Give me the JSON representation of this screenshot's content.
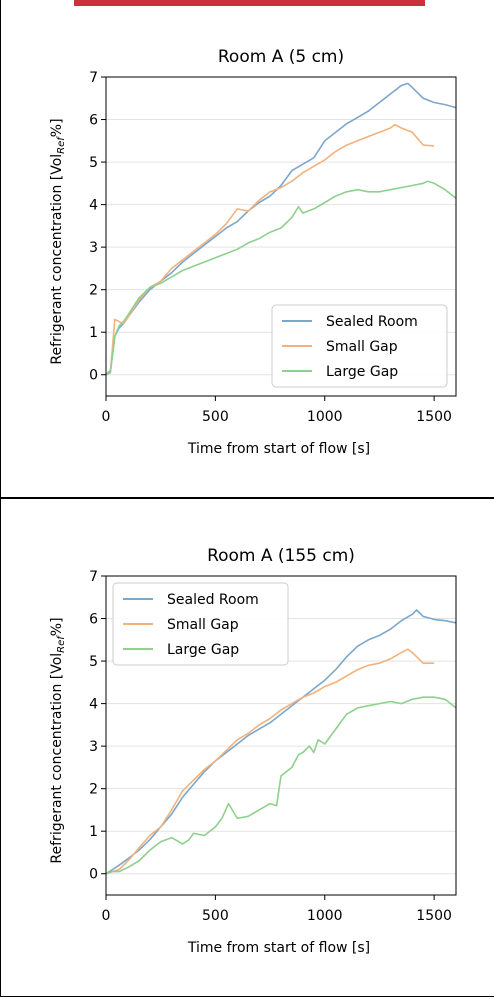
{
  "chart_data": [
    {
      "type": "line",
      "title": "Room A (5 cm)",
      "xlabel": "Time from start of flow [s]",
      "ylabel_main": "Refrigerant concentration [Vol",
      "ylabel_sub": "Ref",
      "ylabel_end": "%]",
      "xlim": [
        0,
        1600
      ],
      "ylim": [
        -0.5,
        7
      ],
      "xticks": [
        0,
        500,
        1000,
        1500
      ],
      "yticks": [
        0,
        1,
        2,
        3,
        4,
        5,
        6,
        7
      ],
      "grid": "horizontal",
      "legend_position": "lower-right",
      "series": [
        {
          "name": "Sealed Room",
          "color": "#7ba7cb",
          "x": [
            0,
            20,
            40,
            60,
            80,
            100,
            150,
            200,
            250,
            300,
            350,
            400,
            450,
            500,
            550,
            600,
            650,
            700,
            750,
            800,
            850,
            900,
            950,
            1000,
            1050,
            1100,
            1150,
            1200,
            1250,
            1300,
            1350,
            1380,
            1400,
            1450,
            1500,
            1550,
            1600
          ],
          "y": [
            0,
            0.1,
            0.9,
            1.1,
            1.2,
            1.35,
            1.7,
            2.0,
            2.2,
            2.4,
            2.65,
            2.85,
            3.05,
            3.25,
            3.45,
            3.6,
            3.85,
            4.05,
            4.2,
            4.45,
            4.8,
            4.95,
            5.1,
            5.5,
            5.7,
            5.9,
            6.05,
            6.2,
            6.4,
            6.6,
            6.8,
            6.85,
            6.75,
            6.5,
            6.4,
            6.35,
            6.28
          ]
        },
        {
          "name": "Small Gap",
          "color": "#f2b27d",
          "x": [
            0,
            20,
            40,
            60,
            80,
            100,
            150,
            200,
            250,
            300,
            350,
            400,
            450,
            500,
            550,
            600,
            650,
            700,
            750,
            800,
            850,
            900,
            950,
            1000,
            1050,
            1100,
            1150,
            1200,
            1250,
            1300,
            1320,
            1350,
            1400,
            1450,
            1500
          ],
          "y": [
            0,
            0.05,
            1.3,
            1.25,
            1.2,
            1.35,
            1.75,
            2.05,
            2.2,
            2.5,
            2.7,
            2.9,
            3.1,
            3.3,
            3.55,
            3.9,
            3.85,
            4.1,
            4.3,
            4.4,
            4.55,
            4.75,
            4.9,
            5.05,
            5.25,
            5.4,
            5.5,
            5.6,
            5.7,
            5.8,
            5.88,
            5.8,
            5.7,
            5.4,
            5.38
          ]
        },
        {
          "name": "Large Gap",
          "color": "#8fd08d",
          "x": [
            0,
            20,
            40,
            60,
            80,
            100,
            150,
            200,
            250,
            300,
            350,
            400,
            450,
            500,
            550,
            600,
            650,
            700,
            750,
            800,
            850,
            880,
            900,
            950,
            1000,
            1050,
            1100,
            1150,
            1200,
            1250,
            1300,
            1350,
            1400,
            1450,
            1470,
            1500,
            1550,
            1600
          ],
          "y": [
            0,
            0.05,
            0.9,
            1.15,
            1.25,
            1.4,
            1.8,
            2.05,
            2.15,
            2.3,
            2.45,
            2.55,
            2.65,
            2.75,
            2.85,
            2.95,
            3.1,
            3.2,
            3.35,
            3.45,
            3.7,
            3.95,
            3.8,
            3.9,
            4.05,
            4.2,
            4.3,
            4.35,
            4.3,
            4.3,
            4.35,
            4.4,
            4.45,
            4.5,
            4.55,
            4.5,
            4.35,
            4.15
          ]
        }
      ]
    },
    {
      "type": "line",
      "title": "Room A (155 cm)",
      "xlabel": "Time from start of flow [s]",
      "ylabel_main": "Refrigerant concentration [Vol",
      "ylabel_sub": "Ref",
      "ylabel_end": "%]",
      "xlim": [
        0,
        1600
      ],
      "ylim": [
        -0.5,
        7
      ],
      "xticks": [
        0,
        500,
        1000,
        1500
      ],
      "yticks": [
        0,
        1,
        2,
        3,
        4,
        5,
        6,
        7
      ],
      "grid": "horizontal",
      "legend_position": "upper-left",
      "series": [
        {
          "name": "Sealed Room",
          "color": "#7ba7cb",
          "x": [
            0,
            30,
            60,
            100,
            150,
            200,
            250,
            300,
            350,
            400,
            450,
            500,
            550,
            600,
            650,
            700,
            750,
            800,
            850,
            900,
            950,
            1000,
            1050,
            1100,
            1150,
            1200,
            1250,
            1300,
            1350,
            1400,
            1420,
            1450,
            1500,
            1550,
            1600
          ],
          "y": [
            0,
            0.1,
            0.2,
            0.35,
            0.55,
            0.8,
            1.1,
            1.4,
            1.8,
            2.1,
            2.4,
            2.65,
            2.85,
            3.05,
            3.25,
            3.4,
            3.55,
            3.75,
            3.95,
            4.15,
            4.35,
            4.55,
            4.8,
            5.1,
            5.35,
            5.5,
            5.6,
            5.75,
            5.95,
            6.1,
            6.2,
            6.05,
            5.98,
            5.95,
            5.9
          ]
        },
        {
          "name": "Small Gap",
          "color": "#f2b27d",
          "x": [
            0,
            30,
            60,
            100,
            150,
            200,
            250,
            300,
            350,
            400,
            450,
            500,
            550,
            600,
            650,
            700,
            750,
            800,
            850,
            900,
            950,
            1000,
            1050,
            1100,
            1150,
            1200,
            1250,
            1300,
            1350,
            1380,
            1400,
            1450,
            1500
          ],
          "y": [
            0,
            0.05,
            0.1,
            0.3,
            0.6,
            0.9,
            1.1,
            1.5,
            1.95,
            2.2,
            2.45,
            2.65,
            2.9,
            3.15,
            3.3,
            3.5,
            3.65,
            3.85,
            4.0,
            4.15,
            4.25,
            4.4,
            4.5,
            4.65,
            4.8,
            4.9,
            4.95,
            5.05,
            5.2,
            5.28,
            5.2,
            4.95,
            4.95
          ]
        },
        {
          "name": "Large Gap",
          "color": "#8fd08d",
          "x": [
            0,
            30,
            60,
            100,
            150,
            200,
            250,
            300,
            350,
            380,
            400,
            450,
            500,
            530,
            560,
            600,
            650,
            700,
            750,
            780,
            800,
            850,
            880,
            900,
            930,
            950,
            970,
            1000,
            1050,
            1100,
            1150,
            1200,
            1250,
            1300,
            1350,
            1400,
            1450,
            1500,
            1550,
            1600
          ],
          "y": [
            0,
            0.05,
            0.05,
            0.15,
            0.3,
            0.55,
            0.75,
            0.85,
            0.7,
            0.8,
            0.95,
            0.9,
            1.1,
            1.3,
            1.65,
            1.3,
            1.35,
            1.5,
            1.65,
            1.6,
            2.3,
            2.5,
            2.8,
            2.85,
            3.0,
            2.85,
            3.15,
            3.05,
            3.4,
            3.75,
            3.9,
            3.95,
            4.0,
            4.05,
            4.0,
            4.1,
            4.15,
            4.15,
            4.1,
            3.9
          ]
        }
      ]
    }
  ]
}
